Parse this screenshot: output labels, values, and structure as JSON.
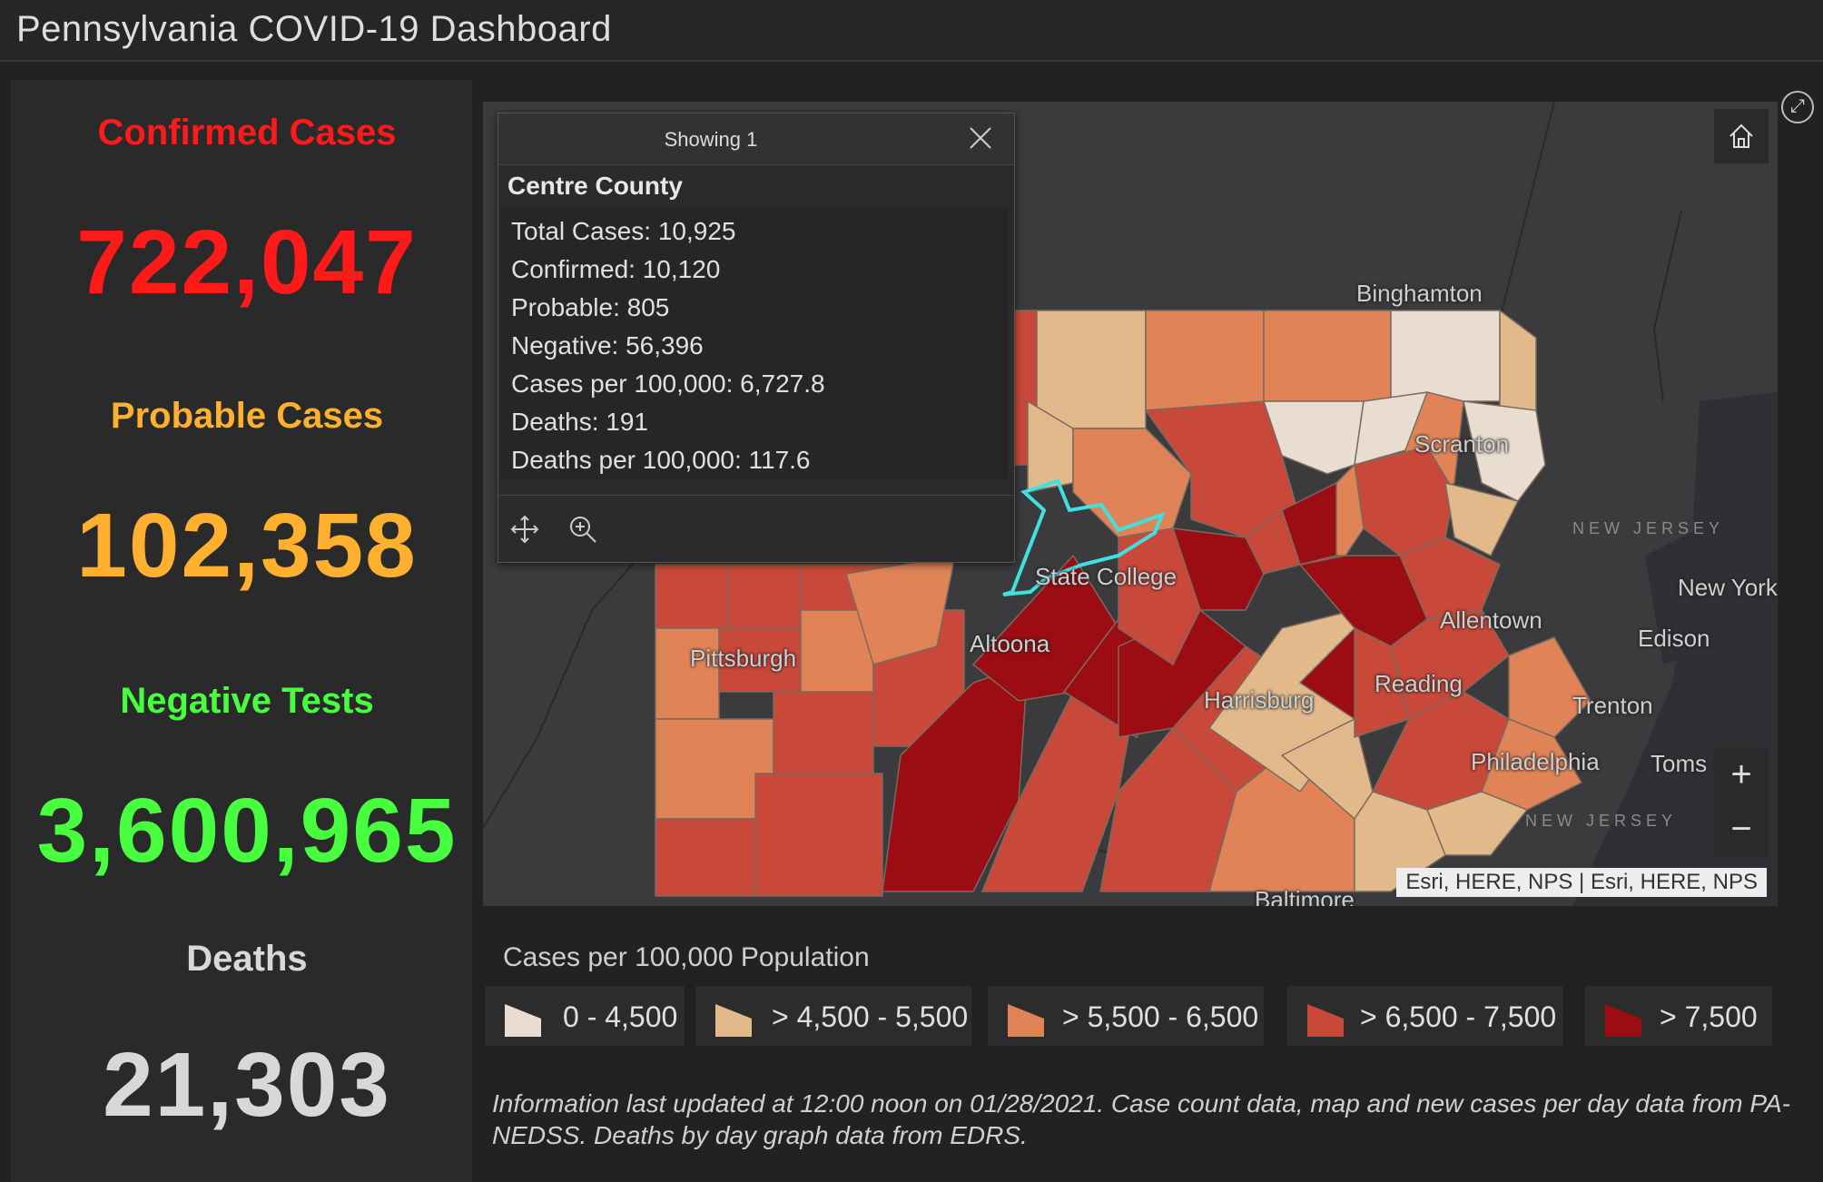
{
  "app": {
    "title": "Pennsylvania COVID-19 Dashboard"
  },
  "stats": {
    "confirmed": {
      "label": "Confirmed Cases",
      "value": "722,047",
      "color": "#ff1a1a"
    },
    "probable": {
      "label": "Probable Cases",
      "value": "102,358",
      "color": "#ffb02e"
    },
    "negative": {
      "label": "Negative Tests",
      "value": "3,600,965",
      "color": "#48ff3f"
    },
    "deaths": {
      "label": "Deaths",
      "value": "21,303",
      "color": "#d8d8d8"
    }
  },
  "map": {
    "cities": [
      "Binghamton",
      "Scranton",
      "State College",
      "Altoona",
      "Pittsburgh",
      "Harrisburg",
      "Reading",
      "Allentown",
      "New York",
      "Edison",
      "Trenton",
      "Philadelphia",
      "Toms Ri",
      "Baltimore"
    ],
    "state_labels": {
      "nj_top": "NEW JERSEY",
      "nj_bottom": "NEW JERSEY"
    },
    "attribution": "Esri, HERE, NPS | Esri, HERE, NPS",
    "zoom_in_label": "+",
    "zoom_out_label": "−",
    "home_icon": "home-icon",
    "expand_icon": "expand-icon",
    "highlight_color": "#3fe0e0"
  },
  "popup": {
    "header": "Showing 1",
    "county": "Centre County",
    "fields": [
      "Total Cases: 10,925",
      "Confirmed: 10,120",
      "Probable: 805",
      "Negative: 56,396",
      "Cases per 100,000: 6,727.8",
      "Deaths: 191",
      "Deaths per 100,000: 117.6"
    ],
    "actions": [
      "pan-icon",
      "zoom-to-icon"
    ]
  },
  "legend": {
    "title": "Cases per 100,000 Population",
    "items": [
      {
        "label": "0 - 4,500",
        "color": "#e8ddd0"
      },
      {
        "label": "> 4,500 - 5,500",
        "color": "#e2b98a"
      },
      {
        "label": "> 5,500 - 6,500",
        "color": "#e08458"
      },
      {
        "label": "> 6,500 - 7,500",
        "color": "#c8483a"
      },
      {
        "label": "> 7,500",
        "color": "#9b0d12"
      }
    ]
  },
  "footnote": "Information last updated at 12:00 noon on 01/28/2021. Case count data, map and new cases per day data from PA-NEDSS.  Deaths by day graph data from EDRS."
}
